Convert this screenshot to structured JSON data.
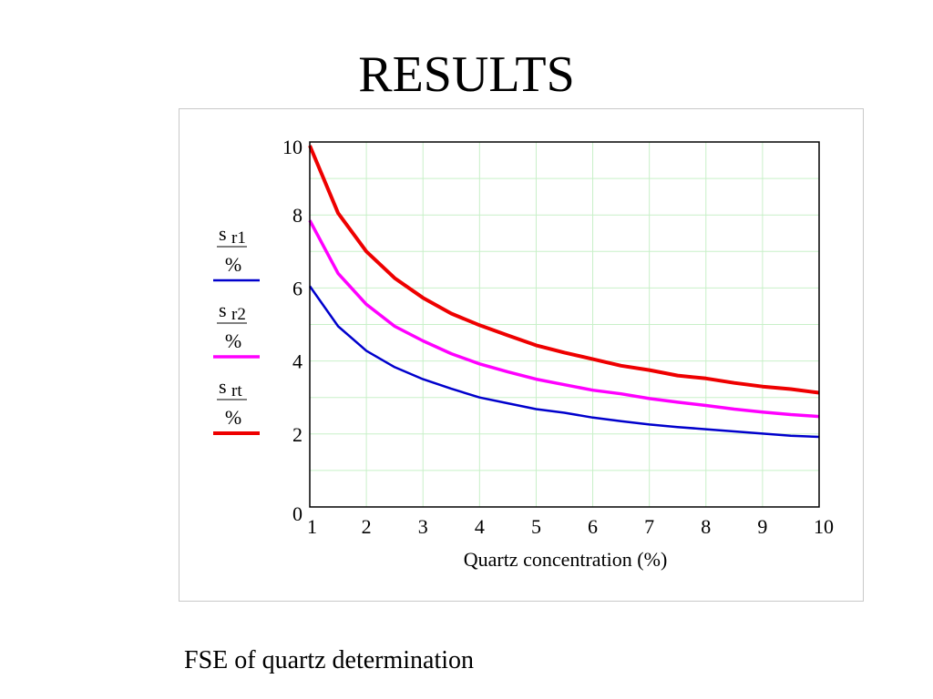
{
  "slide": {
    "title": "RESULTS",
    "caption": "FSE of quartz determination"
  },
  "chart_data": {
    "type": "line",
    "title": "",
    "xlabel": "Quartz concentration (%)",
    "ylabel": "",
    "xlim": [
      1,
      10
    ],
    "ylim": [
      0,
      10
    ],
    "xticks": [
      1,
      2,
      3,
      4,
      5,
      6,
      7,
      8,
      9,
      10
    ],
    "yticks": [
      0,
      2,
      4,
      6,
      8,
      10
    ],
    "grid": true,
    "grid_color": "#c8f0c8",
    "legend_position": "left",
    "x": [
      1,
      1.5,
      2,
      2.5,
      3,
      3.5,
      4,
      4.5,
      5,
      5.5,
      6,
      6.5,
      7,
      7.5,
      8,
      8.5,
      9,
      9.5,
      10
    ],
    "series": [
      {
        "legend_symbol": "s",
        "legend_subscript": "r1",
        "legend_denominator": "%",
        "color": "#0000cc",
        "values": [
          6.05,
          4.95,
          4.28,
          3.83,
          3.5,
          3.24,
          3.0,
          2.84,
          2.68,
          2.58,
          2.45,
          2.35,
          2.26,
          2.19,
          2.13,
          2.07,
          2.01,
          1.95,
          1.92
        ]
      },
      {
        "legend_symbol": "s",
        "legend_subscript": "r2",
        "legend_denominator": "%",
        "color": "#ff00ff",
        "values": [
          7.85,
          6.4,
          5.55,
          4.95,
          4.55,
          4.2,
          3.92,
          3.7,
          3.5,
          3.35,
          3.2,
          3.1,
          2.97,
          2.87,
          2.78,
          2.68,
          2.6,
          2.53,
          2.48
        ]
      },
      {
        "legend_symbol": "s",
        "legend_subscript": "rt",
        "legend_denominator": "%",
        "color": "#ee0000",
        "values": [
          9.9,
          8.05,
          7.0,
          6.27,
          5.73,
          5.3,
          4.98,
          4.7,
          4.43,
          4.23,
          4.05,
          3.87,
          3.75,
          3.6,
          3.52,
          3.4,
          3.3,
          3.23,
          3.13
        ]
      }
    ]
  }
}
